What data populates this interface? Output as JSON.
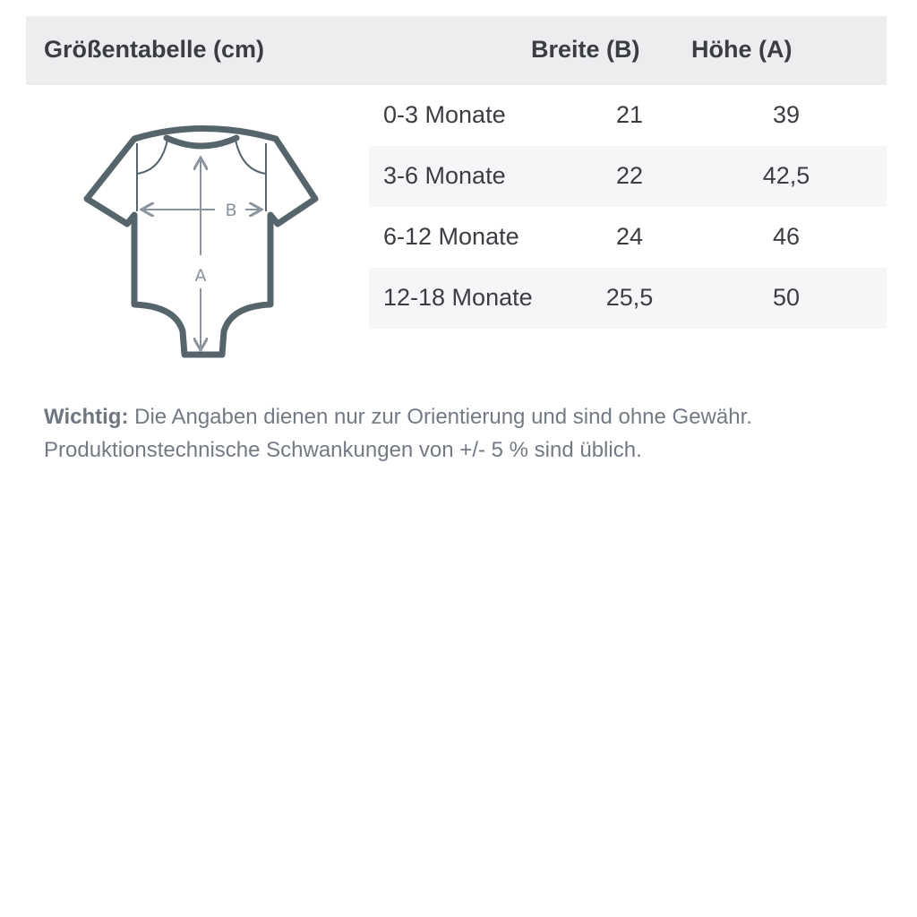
{
  "header": {
    "title": "Größentabelle (cm)",
    "col_width": "Breite (B)",
    "col_height": "Höhe (A)"
  },
  "rows": [
    {
      "size": "0-3 Monate",
      "width": "21",
      "height": "39"
    },
    {
      "size": "3-6 Monate",
      "width": "22",
      "height": "42,5"
    },
    {
      "size": "6-12 Monate",
      "width": "24",
      "height": "46"
    },
    {
      "size": "12-18 Monate",
      "width": "25,5",
      "height": "50"
    }
  ],
  "diagram": {
    "label_b": "B",
    "label_a": "A",
    "outline_color": "#56656c",
    "arrow_color": "#8a949e"
  },
  "note": {
    "label": "Wichtig:",
    "line1": "Die Angaben dienen nur zur Orientierung und sind ohne Gewähr.",
    "line2": "Produktionstechnische Schwankungen von +/- 5 % sind üblich."
  }
}
